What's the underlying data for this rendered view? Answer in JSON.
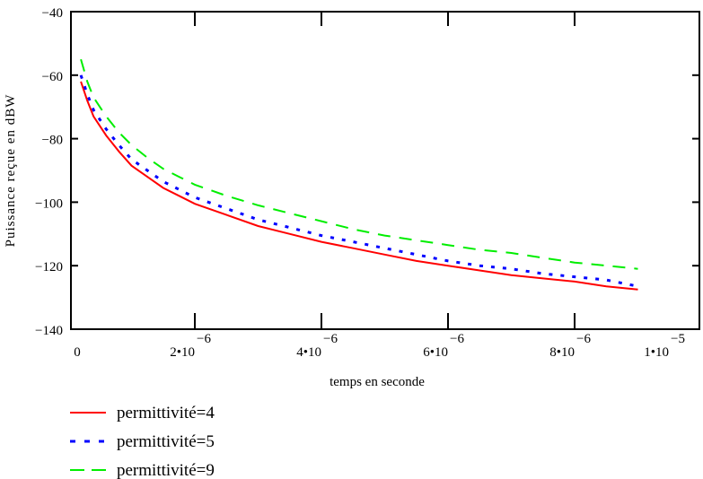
{
  "chart_data": {
    "type": "line",
    "title": "",
    "xlabel": "temps en seconde",
    "ylabel": "Puissance reçue en dBW",
    "xlim": [
      0,
      1e-05
    ],
    "ylim": [
      -140,
      -40
    ],
    "grid": false,
    "legend_position": "bottom-left",
    "y_ticks": [
      {
        "value": -40,
        "label": "−40"
      },
      {
        "value": -60,
        "label": "−60"
      },
      {
        "value": -80,
        "label": "−80"
      },
      {
        "value": -100,
        "label": "−100"
      },
      {
        "value": -120,
        "label": "−120"
      },
      {
        "value": -140,
        "label": "−140"
      }
    ],
    "x_ticks": [
      {
        "value": 0,
        "mant": "0",
        "exp": ""
      },
      {
        "value": 2e-06,
        "mant": "2•10",
        "exp": "−6"
      },
      {
        "value": 4e-06,
        "mant": "4•10",
        "exp": "−6"
      },
      {
        "value": 6e-06,
        "mant": "6•10",
        "exp": "−6"
      },
      {
        "value": 8e-06,
        "mant": "8•10",
        "exp": "−6"
      },
      {
        "value": 1e-05,
        "mant": "1•10",
        "exp": "−5"
      }
    ],
    "x": [
      2e-07,
      3e-07,
      4e-07,
      6e-07,
      8e-07,
      1e-06,
      1.25e-06,
      1.5e-06,
      1.75e-06,
      2e-06,
      2.5e-06,
      3e-06,
      3.5e-06,
      4e-06,
      4.5e-06,
      5e-06,
      5.5e-06,
      6e-06,
      6.5e-06,
      7e-06,
      7.5e-06,
      8e-06,
      8.5e-06,
      9e-06
    ],
    "series": [
      {
        "name": "permittivité=4",
        "color": "#ff0000",
        "dash": "solid",
        "values": [
          -62,
          -68,
          -73,
          -79,
          -84,
          -88.5,
          -92,
          -95.5,
          -98,
          -100.5,
          -104,
          -107.5,
          -110,
          -112.5,
          -114.5,
          -116.5,
          -118.5,
          -120,
          -121.5,
          -123,
          -124,
          -125,
          -126.5,
          -127.5
        ]
      },
      {
        "name": "permittivité=5",
        "color": "#0000ff",
        "dash": "dotted",
        "values": [
          -60,
          -66,
          -71,
          -77,
          -82,
          -86.5,
          -90,
          -93.5,
          -96,
          -98.5,
          -102,
          -105.5,
          -108,
          -110.5,
          -112.5,
          -114.5,
          -116.5,
          -118.5,
          -120,
          -121,
          -122.5,
          -123.5,
          -124.5,
          -126.5
        ]
      },
      {
        "name": "permittivité=9",
        "color": "#00ee00",
        "dash": "dashed",
        "values": [
          -55,
          -62,
          -67,
          -73,
          -78,
          -82,
          -86,
          -89.5,
          -92,
          -94.5,
          -98,
          -101,
          -103.5,
          -106,
          -108.5,
          -110.5,
          -112,
          -113.5,
          -115,
          -116,
          -117.5,
          -119,
          -120,
          -121
        ]
      }
    ]
  }
}
